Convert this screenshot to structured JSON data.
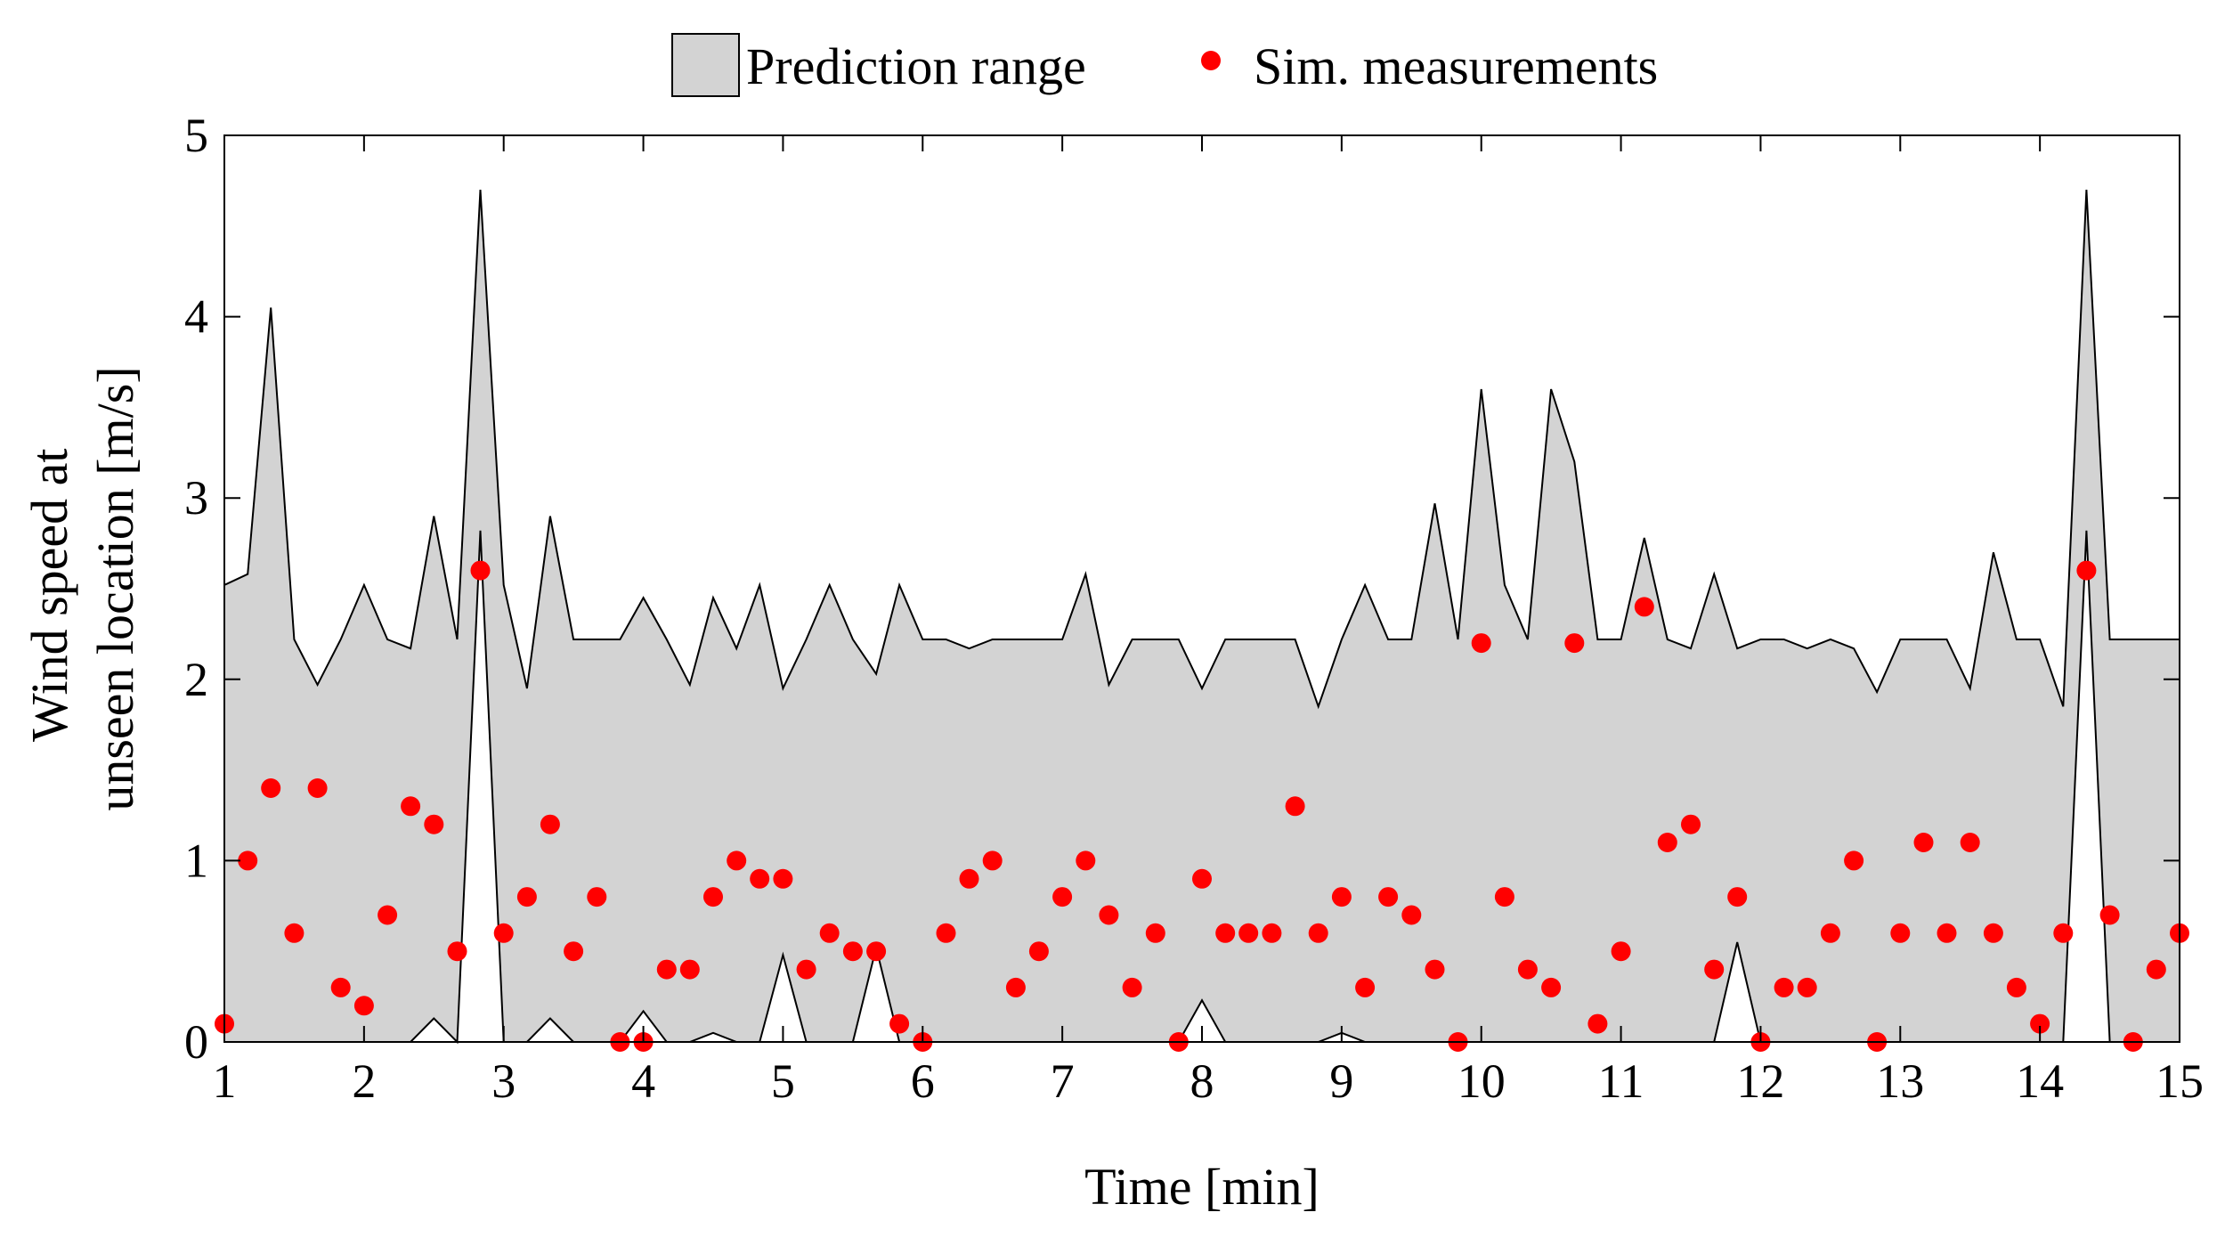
{
  "chart_data": {
    "type": "area",
    "xlabel": "Time [min]",
    "ylabel": [
      "Wind speed at",
      "unseen location [m/s]"
    ],
    "xlim": [
      1,
      15
    ],
    "ylim": [
      0,
      5
    ],
    "xticks": [
      1,
      2,
      3,
      4,
      5,
      6,
      7,
      8,
      9,
      10,
      11,
      12,
      13,
      14,
      15
    ],
    "yticks": [
      0,
      1,
      2,
      3,
      4,
      5
    ],
    "grid": false,
    "legend": {
      "placement": "top-center",
      "entries": [
        {
          "name": "Prediction range",
          "kind": "patch"
        },
        {
          "name": "Sim. measurements",
          "kind": "marker"
        }
      ]
    },
    "colors": {
      "band_fill": "#d3d3d3",
      "band_edge": "#000000",
      "marker": "#ff0000"
    },
    "band": {
      "x": [
        1,
        1.167,
        1.333,
        1.5,
        1.667,
        1.833,
        2,
        2.167,
        2.333,
        2.5,
        2.667,
        2.833,
        3,
        3.167,
        3.333,
        3.5,
        3.667,
        3.833,
        4,
        4.167,
        4.333,
        4.5,
        4.667,
        4.833,
        5,
        5.167,
        5.333,
        5.5,
        5.667,
        5.833,
        6,
        6.167,
        6.333,
        6.5,
        6.667,
        6.833,
        7,
        7.167,
        7.333,
        7.5,
        7.667,
        7.833,
        8,
        8.167,
        8.333,
        8.5,
        8.667,
        8.833,
        9,
        9.167,
        9.333,
        9.5,
        9.667,
        9.833,
        10,
        10.167,
        10.333,
        10.5,
        10.667,
        10.833,
        11,
        11.167,
        11.333,
        11.5,
        11.667,
        11.833,
        12,
        12.167,
        12.333,
        12.5,
        12.667,
        12.833,
        13,
        13.167,
        13.333,
        13.5,
        13.667,
        13.833,
        14,
        14.167,
        14.333,
        14.5,
        14.667,
        14.833,
        15
      ],
      "upper": [
        2.52,
        2.58,
        4.05,
        2.22,
        1.97,
        2.22,
        2.52,
        2.22,
        2.17,
        2.9,
        2.22,
        4.7,
        2.52,
        1.95,
        2.9,
        2.22,
        2.22,
        2.22,
        2.45,
        2.22,
        1.97,
        2.45,
        2.17,
        2.52,
        1.95,
        2.22,
        2.52,
        2.22,
        2.03,
        2.52,
        2.22,
        2.22,
        2.17,
        2.22,
        2.22,
        2.22,
        2.22,
        2.58,
        1.97,
        2.22,
        2.22,
        2.22,
        1.95,
        2.22,
        2.22,
        2.22,
        2.22,
        1.85,
        2.22,
        2.52,
        2.22,
        2.22,
        2.97,
        2.22,
        3.6,
        2.52,
        2.22,
        3.6,
        3.2,
        2.22,
        2.22,
        2.78,
        2.22,
        2.17,
        2.58,
        2.17,
        2.22,
        2.22,
        2.17,
        2.22,
        2.17,
        1.93,
        2.22,
        2.22,
        2.22,
        1.95,
        2.7,
        2.22,
        2.22,
        1.85,
        4.7,
        2.22,
        2.22,
        2.22,
        2.22
      ],
      "lower": [
        0,
        0,
        0,
        0,
        0,
        0,
        0,
        0,
        0,
        0.13,
        0,
        2.82,
        0,
        0,
        0.13,
        0,
        0,
        0,
        0.17,
        0,
        0,
        0.05,
        0,
        0,
        0.48,
        0,
        0,
        0,
        0.52,
        0,
        0,
        0,
        0,
        0,
        0,
        0,
        0,
        0,
        0,
        0,
        0,
        0,
        0.23,
        0,
        0,
        0,
        0,
        0,
        0.05,
        0,
        0,
        0,
        0,
        0,
        0,
        0,
        0,
        0,
        0,
        0,
        0,
        0,
        0,
        0,
        0,
        0.55,
        0,
        0,
        0,
        0,
        0,
        0,
        0,
        0,
        0,
        0,
        0,
        0,
        0,
        0,
        2.82,
        0,
        0,
        0,
        0
      ]
    },
    "series": [
      {
        "name": "Sim. measurements",
        "x": [
          1,
          1.167,
          1.333,
          1.5,
          1.667,
          1.833,
          2,
          2.167,
          2.333,
          2.5,
          2.667,
          2.833,
          3,
          3.167,
          3.333,
          3.5,
          3.667,
          3.833,
          4,
          4.167,
          4.333,
          4.5,
          4.667,
          4.833,
          5,
          5.167,
          5.333,
          5.5,
          5.667,
          5.833,
          6,
          6.167,
          6.333,
          6.5,
          6.667,
          6.833,
          7,
          7.167,
          7.333,
          7.5,
          7.667,
          7.833,
          8,
          8.167,
          8.333,
          8.5,
          8.667,
          8.833,
          9,
          9.167,
          9.333,
          9.5,
          9.667,
          9.833,
          10,
          10.167,
          10.333,
          10.5,
          10.667,
          10.833,
          11,
          11.167,
          11.333,
          11.5,
          11.667,
          11.833,
          12,
          12.167,
          12.333,
          12.5,
          12.667,
          12.833,
          13,
          13.167,
          13.333,
          13.5,
          13.667,
          13.833,
          14,
          14.167,
          14.333,
          14.5,
          14.667,
          14.833,
          15
        ],
        "y": [
          0.1,
          1.0,
          1.4,
          0.6,
          1.4,
          0.3,
          0.2,
          0.7,
          1.3,
          1.2,
          0.5,
          2.6,
          0.6,
          0.8,
          1.2,
          0.5,
          0.8,
          0.0,
          0.0,
          0.4,
          0.4,
          0.8,
          1.0,
          0.9,
          0.9,
          0.4,
          0.6,
          0.5,
          0.5,
          0.1,
          0.0,
          0.6,
          0.9,
          1.0,
          0.3,
          0.5,
          0.8,
          1.0,
          0.7,
          0.3,
          0.6,
          0.0,
          0.9,
          0.6,
          0.6,
          0.6,
          1.3,
          0.6,
          0.8,
          0.3,
          0.8,
          0.7,
          0.4,
          0.0,
          2.2,
          0.8,
          0.4,
          0.3,
          2.2,
          0.1,
          0.5,
          2.4,
          1.1,
          1.2,
          0.4,
          0.8,
          0.0,
          0.3,
          0.3,
          0.6,
          1.0,
          0.0,
          0.6,
          1.1,
          0.6,
          1.1,
          0.6,
          0.3,
          0.1,
          0.6,
          2.6,
          0.7,
          0.0,
          0.4,
          0.6
        ]
      }
    ]
  }
}
